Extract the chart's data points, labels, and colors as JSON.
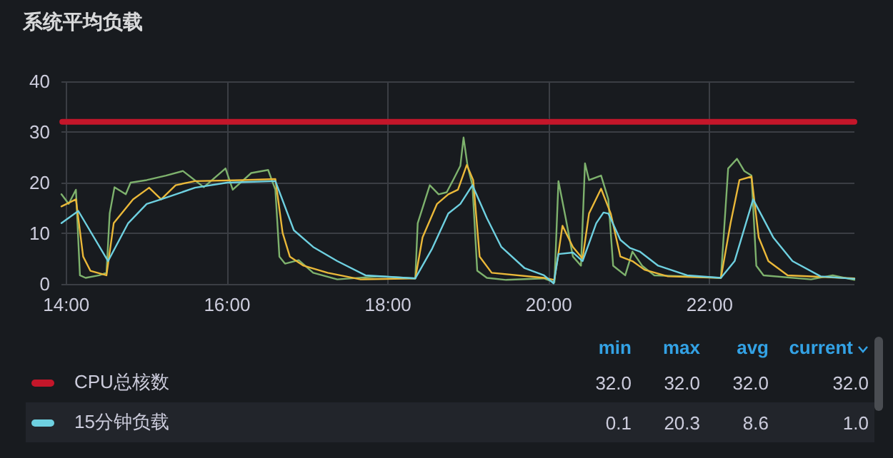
{
  "chart_data": {
    "type": "line",
    "title": "系统平均负载",
    "xlim": [
      13.94,
      23.8
    ],
    "xticks": [
      {
        "value": 14,
        "label": "14:00"
      },
      {
        "value": 16,
        "label": "16:00"
      },
      {
        "value": 18,
        "label": "18:00"
      },
      {
        "value": 20,
        "label": "20:00"
      },
      {
        "value": 22,
        "label": "22:00"
      }
    ],
    "ylim": [
      0,
      40
    ],
    "yticks": [
      0,
      10,
      20,
      30,
      40
    ],
    "grid": true,
    "legend": "bottom",
    "marker": "none",
    "line_style": "solid",
    "annotations": [
      "min",
      "max",
      "avg",
      "current",
      "32.0",
      "32.0",
      "32.0",
      "32.0",
      "0.1",
      "20.3",
      "8.6",
      "1.0"
    ],
    "series": [
      {
        "name": "CPU总核数",
        "color": "#c4162a",
        "x": [
          13.95,
          19.98,
          20.0,
          20.02,
          23.8
        ],
        "values": [
          32,
          32,
          null,
          32,
          32
        ]
      },
      {
        "name": "15分钟负载",
        "color": "#6ed0e0",
        "x": [
          13.94,
          14.15,
          14.52,
          14.77,
          15.0,
          15.18,
          15.6,
          16.0,
          16.6,
          16.83,
          17.07,
          17.37,
          17.72,
          18.34,
          18.55,
          18.75,
          18.9,
          19.05,
          19.23,
          19.41,
          19.7,
          19.94,
          20.06,
          20.12,
          20.3,
          20.42,
          20.59,
          20.68,
          20.74,
          20.89,
          21.01,
          21.13,
          21.36,
          21.72,
          22.14,
          22.31,
          22.54,
          22.79,
          23.03,
          23.38,
          23.8
        ],
        "values": [
          12.0,
          14.4,
          4.5,
          12.0,
          15.8,
          16.7,
          19.0,
          20.0,
          20.3,
          10.6,
          7.3,
          4.5,
          1.7,
          1.1,
          7.0,
          13.9,
          15.8,
          19.5,
          13.0,
          7.3,
          3.1,
          1.7,
          0.1,
          5.9,
          6.2,
          4.5,
          12.0,
          14.1,
          13.9,
          8.7,
          7.1,
          6.4,
          3.6,
          1.7,
          1.2,
          4.5,
          16.7,
          9.2,
          4.5,
          1.5,
          1.0
        ]
      },
      {
        "color": "#eab839",
        "x": [
          13.94,
          14.12,
          14.21,
          14.3,
          14.5,
          14.59,
          14.83,
          15.03,
          15.18,
          15.36,
          15.6,
          16.19,
          16.6,
          16.69,
          16.78,
          16.95,
          17.25,
          17.66,
          18.34,
          18.43,
          18.61,
          18.75,
          18.87,
          18.98,
          19.06,
          19.14,
          19.29,
          19.94,
          20.07,
          20.17,
          20.3,
          20.42,
          20.5,
          20.65,
          20.77,
          20.89,
          21.04,
          21.19,
          21.48,
          22.14,
          22.26,
          22.37,
          22.52,
          22.61,
          22.73,
          22.97,
          23.8
        ],
        "values": [
          15.3,
          16.7,
          5.4,
          2.6,
          1.7,
          12.0,
          16.7,
          19.0,
          16.7,
          19.5,
          20.3,
          20.5,
          20.7,
          10.1,
          5.4,
          3.6,
          2.2,
          0.9,
          1.1,
          9.2,
          15.8,
          17.7,
          18.6,
          23.5,
          20.5,
          5.4,
          2.2,
          1.2,
          0.8,
          11.5,
          7.3,
          5.0,
          13.9,
          18.8,
          13.9,
          5.4,
          4.5,
          2.8,
          1.5,
          1.2,
          12.0,
          20.5,
          21.2,
          9.2,
          4.5,
          1.7,
          1.1
        ]
      },
      {
        "color": "#7eb26d",
        "x": [
          13.94,
          14.03,
          14.12,
          14.17,
          14.24,
          14.41,
          14.5,
          14.54,
          14.6,
          14.74,
          14.8,
          15.0,
          15.24,
          15.45,
          15.71,
          15.98,
          16.07,
          16.3,
          16.51,
          16.6,
          16.65,
          16.72,
          16.89,
          17.07,
          17.37,
          17.9,
          18.34,
          18.37,
          18.52,
          18.63,
          18.73,
          18.81,
          18.9,
          18.94,
          18.99,
          19.05,
          19.11,
          19.23,
          19.47,
          19.94,
          20.07,
          20.12,
          20.21,
          20.3,
          20.4,
          20.45,
          20.5,
          20.65,
          20.74,
          20.8,
          20.95,
          21.04,
          21.16,
          21.31,
          21.72,
          22.14,
          22.23,
          22.34,
          22.43,
          22.52,
          22.58,
          22.67,
          23.26,
          23.53,
          23.8
        ],
        "values": [
          17.7,
          15.8,
          18.6,
          1.7,
          1.2,
          1.7,
          2.2,
          13.9,
          19.1,
          17.7,
          20.0,
          20.5,
          21.4,
          22.3,
          19.1,
          22.8,
          18.6,
          21.9,
          22.5,
          18.6,
          5.4,
          4.0,
          4.7,
          2.2,
          0.9,
          1.5,
          1.1,
          12.0,
          19.5,
          17.7,
          18.1,
          20.5,
          23.3,
          28.9,
          23.3,
          19.5,
          2.6,
          1.2,
          0.8,
          1.1,
          0.3,
          20.3,
          13.0,
          5.4,
          3.6,
          23.8,
          20.5,
          21.4,
          16.7,
          3.6,
          1.7,
          6.4,
          3.6,
          1.7,
          1.5,
          1.2,
          22.8,
          24.7,
          22.3,
          21.4,
          3.6,
          1.7,
          0.9,
          1.7,
          0.8
        ]
      }
    ]
  }
}
